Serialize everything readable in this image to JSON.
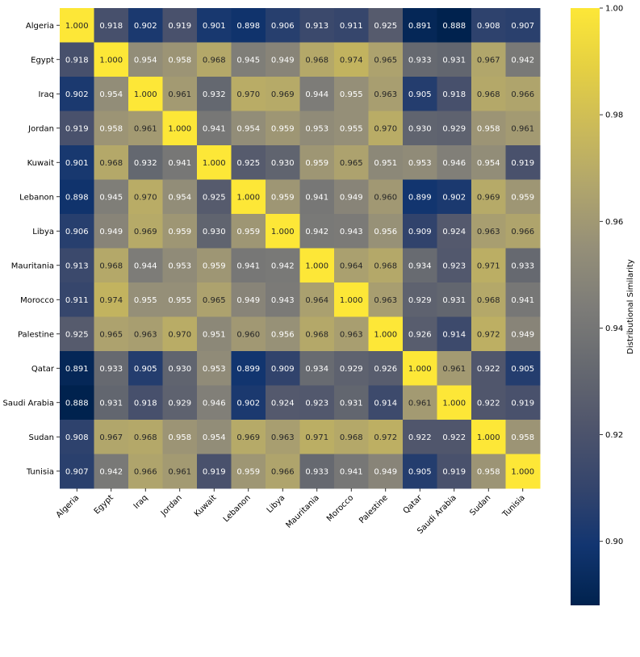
{
  "chart_data": {
    "type": "heatmap",
    "title": "",
    "xlabel": "",
    "ylabel": "",
    "colorbar_label": "Distributional Similarity",
    "colormap": "cividis",
    "vmin": 0.888,
    "vmax": 1.0,
    "colorbar_ticks": [
      "0.90",
      "0.92",
      "0.94",
      "0.96",
      "0.98",
      "1.00"
    ],
    "colorbar_tick_values": [
      0.9,
      0.92,
      0.94,
      0.96,
      0.98,
      1.0
    ],
    "labels": [
      "Algeria",
      "Egypt",
      "Iraq",
      "Jordan",
      "Kuwait",
      "Lebanon",
      "Libya",
      "Mauritania",
      "Morocco",
      "Palestine",
      "Qatar",
      "Saudi Arabia",
      "Sudan",
      "Tunisia"
    ],
    "matrix": [
      [
        1.0,
        0.918,
        0.902,
        0.919,
        0.901,
        0.898,
        0.906,
        0.913,
        0.911,
        0.925,
        0.891,
        0.888,
        0.908,
        0.907
      ],
      [
        0.918,
        1.0,
        0.954,
        0.958,
        0.968,
        0.945,
        0.949,
        0.968,
        0.974,
        0.965,
        0.933,
        0.931,
        0.967,
        0.942
      ],
      [
        0.902,
        0.954,
        1.0,
        0.961,
        0.932,
        0.97,
        0.969,
        0.944,
        0.955,
        0.963,
        0.905,
        0.918,
        0.968,
        0.966
      ],
      [
        0.919,
        0.958,
        0.961,
        1.0,
        0.941,
        0.954,
        0.959,
        0.953,
        0.955,
        0.97,
        0.93,
        0.929,
        0.958,
        0.961
      ],
      [
        0.901,
        0.968,
        0.932,
        0.941,
        1.0,
        0.925,
        0.93,
        0.959,
        0.965,
        0.951,
        0.953,
        0.946,
        0.954,
        0.919
      ],
      [
        0.898,
        0.945,
        0.97,
        0.954,
        0.925,
        1.0,
        0.959,
        0.941,
        0.949,
        0.96,
        0.899,
        0.902,
        0.969,
        0.959
      ],
      [
        0.906,
        0.949,
        0.969,
        0.959,
        0.93,
        0.959,
        1.0,
        0.942,
        0.943,
        0.956,
        0.909,
        0.924,
        0.963,
        0.966
      ],
      [
        0.913,
        0.968,
        0.944,
        0.953,
        0.959,
        0.941,
        0.942,
        1.0,
        0.964,
        0.968,
        0.934,
        0.923,
        0.971,
        0.933
      ],
      [
        0.911,
        0.974,
        0.955,
        0.955,
        0.965,
        0.949,
        0.943,
        0.964,
        1.0,
        0.963,
        0.929,
        0.931,
        0.968,
        0.941
      ],
      [
        0.925,
        0.965,
        0.963,
        0.97,
        0.951,
        0.96,
        0.956,
        0.968,
        0.963,
        1.0,
        0.926,
        0.914,
        0.972,
        0.949
      ],
      [
        0.891,
        0.933,
        0.905,
        0.93,
        0.953,
        0.899,
        0.909,
        0.934,
        0.929,
        0.926,
        1.0,
        0.961,
        0.922,
        0.905
      ],
      [
        0.888,
        0.931,
        0.918,
        0.929,
        0.946,
        0.902,
        0.924,
        0.923,
        0.931,
        0.914,
        0.961,
        1.0,
        0.922,
        0.919
      ],
      [
        0.908,
        0.967,
        0.968,
        0.958,
        0.954,
        0.969,
        0.963,
        0.971,
        0.968,
        0.972,
        0.922,
        0.922,
        1.0,
        0.958
      ],
      [
        0.907,
        0.942,
        0.966,
        0.961,
        0.919,
        0.959,
        0.966,
        0.933,
        0.941,
        0.949,
        0.905,
        0.919,
        0.958,
        1.0
      ]
    ]
  }
}
